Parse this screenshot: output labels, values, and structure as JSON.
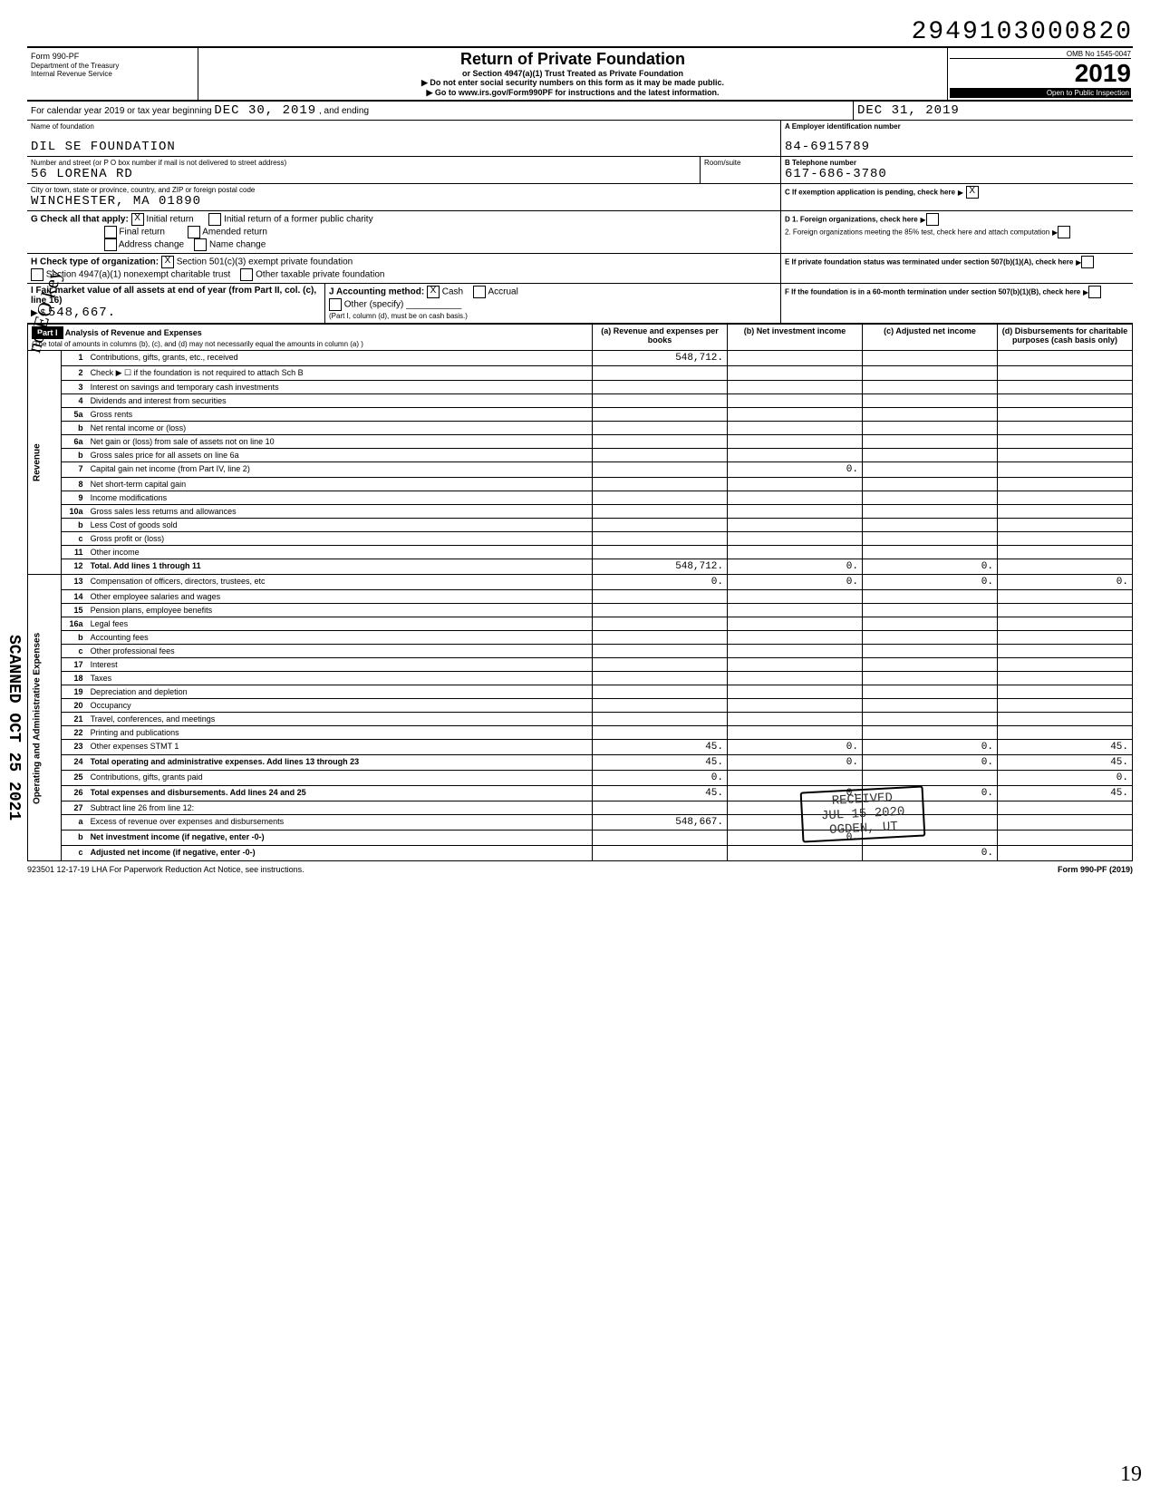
{
  "stamp_number": "2949103000820",
  "omb": "OMB No 1545-0047",
  "form_label": "Form",
  "form_number": "990-PF",
  "dept": "Department of the Treasury",
  "irs": "Internal Revenue Service",
  "title": "Return of Private Foundation",
  "subtitle1": "or Section 4947(a)(1) Trust Treated as Private Foundation",
  "subtitle2": "▶ Do not enter social security numbers on this form as it may be made public.",
  "subtitle3": "▶ Go to www.irs.gov/Form990PF for instructions and the latest information.",
  "year": "2019",
  "open_inspection": "Open to Public Inspection",
  "cal_year_label": "For calendar year 2019 or tax year beginning",
  "begin_date": "DEC 30, 2019",
  "and_ending": ", and ending",
  "end_date": "DEC 31, 2019",
  "name_label": "Name of foundation",
  "name": "DIL SE FOUNDATION",
  "ein_label": "A Employer identification number",
  "ein": "84-6915789",
  "addr_label": "Number and street (or P O box number if mail is not delivered to street address)",
  "street": "56 LORENA RD",
  "room_label": "Room/suite",
  "phone_label": "B Telephone number",
  "phone": "617-686-3780",
  "city_label": "City or town, state or province, country, and ZIP or foreign postal code",
  "city": "WINCHESTER, MA  01890",
  "c_label": "C If exemption application is pending, check here",
  "g_label": "G  Check all that apply:",
  "g_opts": [
    "Initial return",
    "Initial return of a former public charity",
    "Final return",
    "Amended return",
    "Address change",
    "Name change"
  ],
  "d1_label": "D 1. Foreign organizations, check here",
  "d2_label": "2. Foreign organizations meeting the 85% test, check here and attach computation",
  "h_label": "H  Check type of organization:",
  "h_opts": [
    "Section 501(c)(3) exempt private foundation",
    "Section 4947(a)(1) nonexempt charitable trust",
    "Other taxable private foundation"
  ],
  "e_label": "E  If private foundation status was terminated under section 507(b)(1)(A), check here",
  "i_label": "I  Fair market value of all assets at end of year (from Part II, col. (c), line 16)",
  "i_value": "548,667.",
  "j_label": "J  Accounting method:",
  "j_cash": "Cash",
  "j_accrual": "Accrual",
  "j_other": "Other (specify)",
  "j_note": "(Part I, column (d), must be on cash basis.)",
  "f_label": "F  If the foundation is in a 60-month termination under section 507(b)(1)(B), check here",
  "part1": "Part I",
  "part1_title": "Analysis of Revenue and Expenses",
  "part1_note": "(The total of amounts in columns (b), (c), and (d) may not necessarily equal the amounts in column (a) )",
  "col_a": "(a) Revenue and expenses per books",
  "col_b": "(b) Net investment income",
  "col_c": "(c) Adjusted net income",
  "col_d": "(d) Disbursements for charitable purposes (cash basis only)",
  "revenue_side": "Revenue",
  "expenses_side": "Operating and Administrative Expenses",
  "rows": [
    {
      "n": "1",
      "label": "Contributions, gifts, grants, etc., received",
      "a": "548,712.",
      "b": "",
      "c": "",
      "d": ""
    },
    {
      "n": "2",
      "label": "Check ▶ ☐ if the foundation is not required to attach Sch B",
      "a": "",
      "b": "",
      "c": "",
      "d": ""
    },
    {
      "n": "3",
      "label": "Interest on savings and temporary cash investments",
      "a": "",
      "b": "",
      "c": "",
      "d": ""
    },
    {
      "n": "4",
      "label": "Dividends and interest from securities",
      "a": "",
      "b": "",
      "c": "",
      "d": ""
    },
    {
      "n": "5a",
      "label": "Gross rents",
      "a": "",
      "b": "",
      "c": "",
      "d": ""
    },
    {
      "n": "b",
      "label": "Net rental income or (loss)",
      "a": "",
      "b": "",
      "c": "",
      "d": ""
    },
    {
      "n": "6a",
      "label": "Net gain or (loss) from sale of assets not on line 10",
      "a": "",
      "b": "",
      "c": "",
      "d": ""
    },
    {
      "n": "b",
      "label": "Gross sales price for all assets on line 6a",
      "a": "",
      "b": "",
      "c": "",
      "d": ""
    },
    {
      "n": "7",
      "label": "Capital gain net income (from Part IV, line 2)",
      "a": "",
      "b": "0.",
      "c": "",
      "d": ""
    },
    {
      "n": "8",
      "label": "Net short-term capital gain",
      "a": "",
      "b": "",
      "c": "",
      "d": ""
    },
    {
      "n": "9",
      "label": "Income modifications",
      "a": "",
      "b": "",
      "c": "",
      "d": ""
    },
    {
      "n": "10a",
      "label": "Gross sales less returns and allowances",
      "a": "",
      "b": "",
      "c": "",
      "d": ""
    },
    {
      "n": "b",
      "label": "Less Cost of goods sold",
      "a": "",
      "b": "",
      "c": "",
      "d": ""
    },
    {
      "n": "c",
      "label": "Gross profit or (loss)",
      "a": "",
      "b": "",
      "c": "",
      "d": ""
    },
    {
      "n": "11",
      "label": "Other income",
      "a": "",
      "b": "",
      "c": "",
      "d": ""
    },
    {
      "n": "12",
      "label": "Total. Add lines 1 through 11",
      "a": "548,712.",
      "b": "0.",
      "c": "0.",
      "d": "",
      "bold": true
    },
    {
      "n": "13",
      "label": "Compensation of officers, directors, trustees, etc",
      "a": "0.",
      "b": "0.",
      "c": "0.",
      "d": "0."
    },
    {
      "n": "14",
      "label": "Other employee salaries and wages",
      "a": "",
      "b": "",
      "c": "",
      "d": ""
    },
    {
      "n": "15",
      "label": "Pension plans, employee benefits",
      "a": "",
      "b": "",
      "c": "",
      "d": ""
    },
    {
      "n": "16a",
      "label": "Legal fees",
      "a": "",
      "b": "",
      "c": "",
      "d": ""
    },
    {
      "n": "b",
      "label": "Accounting fees",
      "a": "",
      "b": "",
      "c": "",
      "d": ""
    },
    {
      "n": "c",
      "label": "Other professional fees",
      "a": "",
      "b": "",
      "c": "",
      "d": ""
    },
    {
      "n": "17",
      "label": "Interest",
      "a": "",
      "b": "",
      "c": "",
      "d": ""
    },
    {
      "n": "18",
      "label": "Taxes",
      "a": "",
      "b": "",
      "c": "",
      "d": ""
    },
    {
      "n": "19",
      "label": "Depreciation and depletion",
      "a": "",
      "b": "",
      "c": "",
      "d": ""
    },
    {
      "n": "20",
      "label": "Occupancy",
      "a": "",
      "b": "",
      "c": "",
      "d": ""
    },
    {
      "n": "21",
      "label": "Travel, conferences, and meetings",
      "a": "",
      "b": "",
      "c": "",
      "d": ""
    },
    {
      "n": "22",
      "label": "Printing and publications",
      "a": "",
      "b": "",
      "c": "",
      "d": ""
    },
    {
      "n": "23",
      "label": "Other expenses                     STMT 1",
      "a": "45.",
      "b": "0.",
      "c": "0.",
      "d": "45."
    },
    {
      "n": "24",
      "label": "Total operating and administrative expenses. Add lines 13 through 23",
      "a": "45.",
      "b": "0.",
      "c": "0.",
      "d": "45.",
      "bold": true
    },
    {
      "n": "25",
      "label": "Contributions, gifts, grants paid",
      "a": "0.",
      "b": "",
      "c": "",
      "d": "0."
    },
    {
      "n": "26",
      "label": "Total expenses and disbursements. Add lines 24 and 25",
      "a": "45.",
      "b": "0.",
      "c": "0.",
      "d": "45.",
      "bold": true
    },
    {
      "n": "27",
      "label": "Subtract line 26 from line 12:",
      "a": "",
      "b": "",
      "c": "",
      "d": ""
    },
    {
      "n": "a",
      "label": "Excess of revenue over expenses and disbursements",
      "a": "548,667.",
      "b": "",
      "c": "",
      "d": ""
    },
    {
      "n": "b",
      "label": "Net investment income (if negative, enter -0-)",
      "a": "",
      "b": "0.",
      "c": "",
      "d": "",
      "bold": true
    },
    {
      "n": "c",
      "label": "Adjusted net income (if negative, enter -0-)",
      "a": "",
      "b": "",
      "c": "0.",
      "d": "",
      "bold": true
    }
  ],
  "received": "RECEIVED",
  "received_date": "JUL 15 2020",
  "received_loc": "OGDEN, UT",
  "footer_left": "923501 12-17-19   LHA  For Paperwork Reduction Act Notice, see instructions.",
  "footer_right": "Form 990-PF (2019)",
  "scanned_side": "SCANNED OCT 25 2021",
  "noeo_side": "no EO key",
  "page_num": "19"
}
